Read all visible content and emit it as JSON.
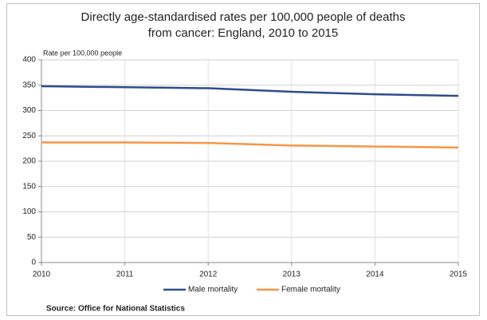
{
  "chart_data": {
    "type": "line",
    "title": "Directly age-standardised rates per 100,000 people of deaths from cancer: England, 2010 to 2015",
    "y_label": "Rate per 100,000 people",
    "source": "Source: Office for National Statistics",
    "x": [
      2010,
      2011,
      2012,
      2013,
      2014,
      2015
    ],
    "series": [
      {
        "name": "Male mortality",
        "color": "#2e4d8a",
        "values": [
          348,
          346,
          344,
          337,
          332,
          329
        ]
      },
      {
        "name": "Female mortality",
        "color": "#f79646",
        "values": [
          237,
          237,
          236,
          231,
          229,
          227
        ]
      }
    ],
    "xlim": [
      2010,
      2015
    ],
    "xticks": [
      2010,
      2011,
      2012,
      2013,
      2014,
      2015
    ],
    "ylim": [
      0,
      400
    ],
    "yticks": [
      0,
      50,
      100,
      150,
      200,
      250,
      300,
      350,
      400
    ],
    "grid": true,
    "legend": "bottom"
  }
}
